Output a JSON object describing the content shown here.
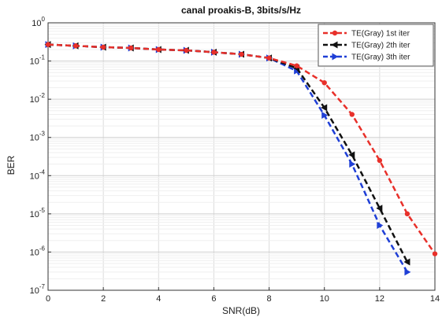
{
  "chart_data": {
    "type": "line",
    "title": "canal proakis-B, 3bits/s/Hz",
    "xlabel": "SNR(dB)",
    "ylabel": "BER",
    "xlim": [
      0,
      14
    ],
    "ylim": [
      1e-07,
      1
    ],
    "yscale": "log",
    "grid": true,
    "legend_position": "top-right",
    "x_ticks": [
      0,
      2,
      4,
      6,
      8,
      10,
      12,
      14
    ],
    "x_tick_labels": [
      "0",
      "2",
      "4",
      "6",
      "8",
      "10",
      "12",
      "14"
    ],
    "y_ticks": [
      1,
      0.1,
      0.01,
      0.001,
      0.0001,
      1e-05,
      1e-06,
      1e-07
    ],
    "y_tick_labels": [
      {
        "base": "10",
        "exp": "0"
      },
      {
        "base": "10",
        "exp": "-1"
      },
      {
        "base": "10",
        "exp": "-2"
      },
      {
        "base": "10",
        "exp": "-3"
      },
      {
        "base": "10",
        "exp": "-4"
      },
      {
        "base": "10",
        "exp": "-5"
      },
      {
        "base": "10",
        "exp": "-6"
      },
      {
        "base": "10",
        "exp": "-7"
      }
    ],
    "series": [
      {
        "name": "TE(Gray) 1st iter",
        "color": "#e8302a",
        "marker": "circle",
        "x": [
          0,
          1,
          2,
          3,
          4,
          5,
          6,
          7,
          8,
          9,
          10,
          11,
          12,
          13,
          14
        ],
        "y": [
          0.27,
          0.25,
          0.23,
          0.22,
          0.2,
          0.19,
          0.17,
          0.15,
          0.12,
          0.075,
          0.027,
          0.004,
          0.00025,
          1e-05,
          9e-07
        ]
      },
      {
        "name": "TE(Gray) 2th iter",
        "color": "#111111",
        "marker": "triangle-left",
        "x": [
          0,
          1,
          2,
          3,
          4,
          5,
          6,
          7,
          8,
          9,
          10,
          11,
          12,
          13
        ],
        "y": [
          0.27,
          0.25,
          0.23,
          0.22,
          0.2,
          0.19,
          0.17,
          0.15,
          0.12,
          0.065,
          0.006,
          0.00035,
          1.4e-05,
          5.5e-07
        ]
      },
      {
        "name": "TE(Gray) 3th iter",
        "color": "#1f3fd6",
        "marker": "triangle-right",
        "x": [
          0,
          1,
          2,
          3,
          4,
          5,
          6,
          7,
          8,
          9,
          10,
          11,
          12,
          13
        ],
        "y": [
          0.27,
          0.25,
          0.23,
          0.22,
          0.2,
          0.19,
          0.17,
          0.15,
          0.12,
          0.055,
          0.0038,
          0.0002,
          5e-06,
          3e-07
        ]
      }
    ]
  }
}
